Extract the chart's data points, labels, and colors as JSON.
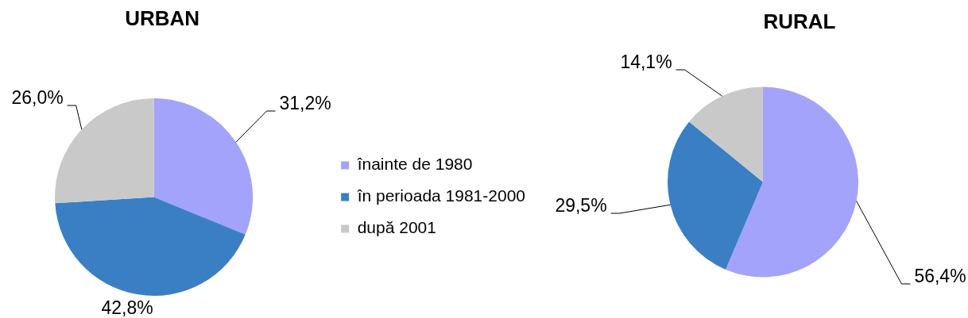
{
  "chart_data": [
    {
      "type": "pie",
      "title": "URBAN",
      "categories": [
        "înainte de 1980",
        "în perioada 1981-2000",
        "după 2001"
      ],
      "values": [
        31.2,
        42.8,
        26.0
      ],
      "colors": [
        "#a3a3fc",
        "#3a7fc3",
        "#c9c9c9"
      ],
      "value_labels": [
        "31,2%",
        "42,8%",
        "26,0%"
      ],
      "legend": "right"
    },
    {
      "type": "pie",
      "title": "RURAL",
      "categories": [
        null,
        null,
        null
      ],
      "values": [
        56.4,
        29.5,
        14.1
      ],
      "colors": [
        "#a3a3fc",
        "#3a7fc3",
        "#c9c9c9"
      ],
      "value_labels": [
        "56,4%",
        "29,5%",
        "14,1%"
      ]
    }
  ]
}
